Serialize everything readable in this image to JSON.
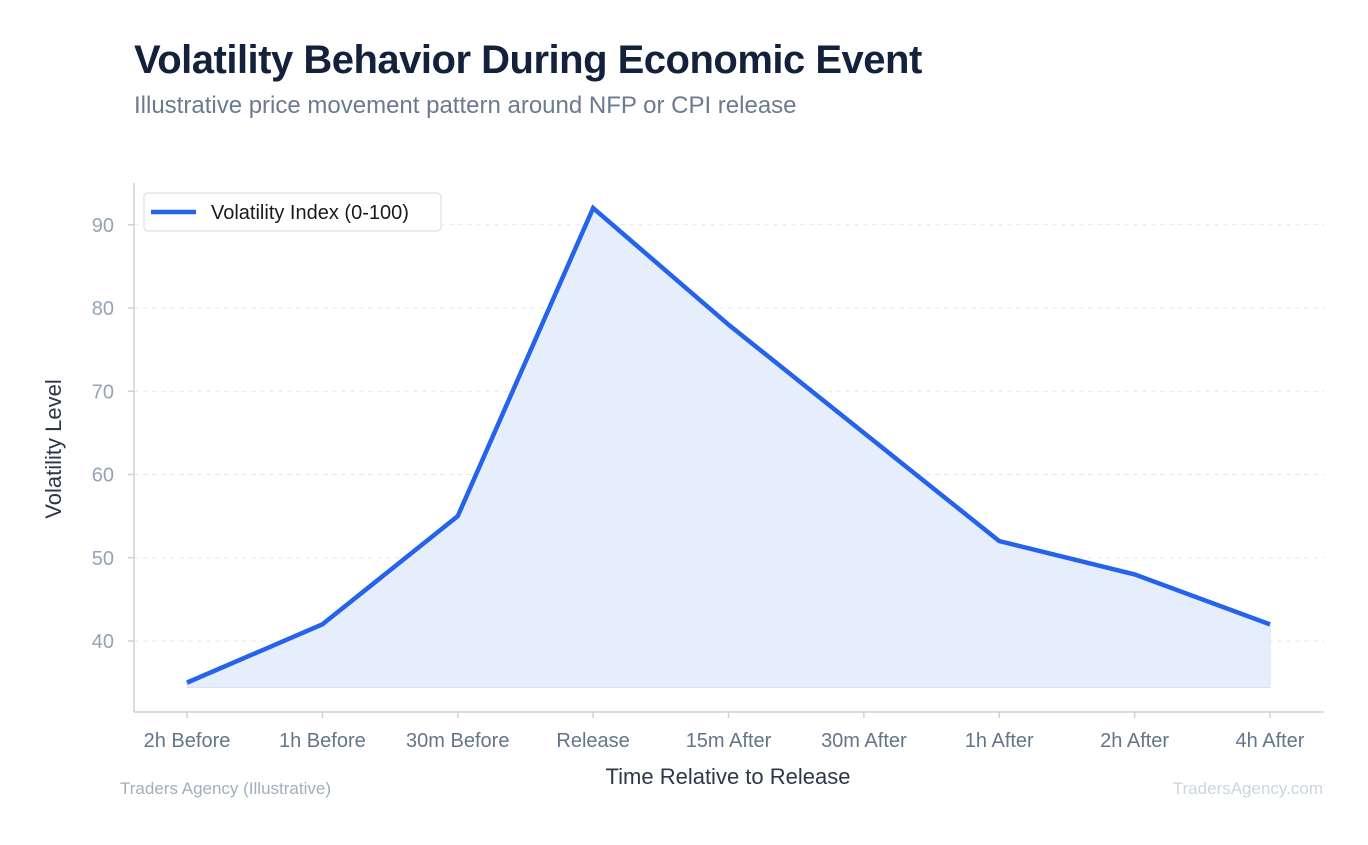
{
  "header": {
    "title": "Volatility Behavior During Economic Event",
    "subtitle": "Illustrative price movement pattern around NFP or CPI release"
  },
  "footer": {
    "source": "Traders Agency (Illustrative)",
    "watermark": "TradersAgency.com"
  },
  "colors": {
    "line": "#2563eb",
    "fill": "#e6eefb",
    "grid": "#e5e9f0",
    "axis": "#cbd2dc"
  },
  "chart_data": {
    "type": "area",
    "title": "Volatility Behavior During Economic Event",
    "subtitle": "Illustrative price movement pattern around NFP or CPI release",
    "xlabel": "Time Relative to Release",
    "ylabel": "Volatility Level",
    "categories": [
      "2h Before",
      "1h Before",
      "30m Before",
      "Release",
      "15m After",
      "30m After",
      "1h After",
      "2h After",
      "4h After"
    ],
    "series": [
      {
        "name": "Volatility Index (0-100)",
        "values": [
          35,
          42,
          55,
          92,
          78,
          65,
          52,
          48,
          42
        ]
      }
    ],
    "yticks": [
      40,
      50,
      60,
      70,
      80,
      90
    ],
    "ylim": [
      32,
      95
    ],
    "grid": true,
    "legend": "top-left"
  }
}
